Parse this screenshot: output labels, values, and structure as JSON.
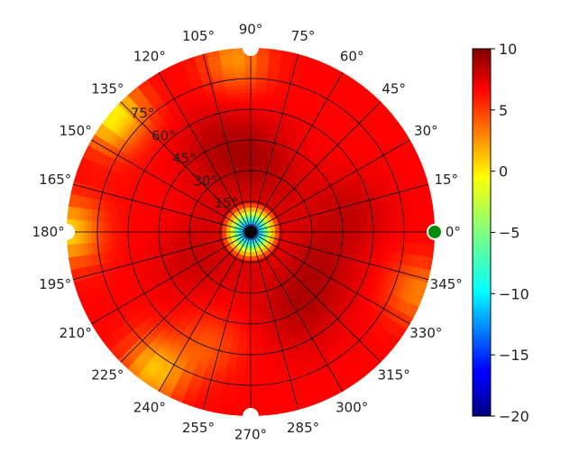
{
  "chart_data": {
    "type": "heatmap",
    "projection": "polar",
    "title": "",
    "angle_ticks": [
      {
        "deg": 0,
        "label": "0°"
      },
      {
        "deg": 15,
        "label": "15°"
      },
      {
        "deg": 30,
        "label": "30°"
      },
      {
        "deg": 45,
        "label": "45°"
      },
      {
        "deg": 60,
        "label": "60°"
      },
      {
        "deg": 75,
        "label": "75°"
      },
      {
        "deg": 90,
        "label": "90°"
      },
      {
        "deg": 105,
        "label": "105°"
      },
      {
        "deg": 120,
        "label": "120°"
      },
      {
        "deg": 135,
        "label": "135°"
      },
      {
        "deg": 150,
        "label": "150°"
      },
      {
        "deg": 165,
        "label": "165°"
      },
      {
        "deg": 180,
        "label": "180°"
      },
      {
        "deg": 195,
        "label": "195°"
      },
      {
        "deg": 210,
        "label": "210°"
      },
      {
        "deg": 225,
        "label": "225°"
      },
      {
        "deg": 240,
        "label": "240°"
      },
      {
        "deg": 255,
        "label": "255°"
      },
      {
        "deg": 270,
        "label": "270°"
      },
      {
        "deg": 285,
        "label": "285°"
      },
      {
        "deg": 300,
        "label": "300°"
      },
      {
        "deg": 315,
        "label": "315°"
      },
      {
        "deg": 330,
        "label": "330°"
      },
      {
        "deg": 345,
        "label": "345°"
      }
    ],
    "radial_ticks": [
      {
        "value": 15,
        "label": "15°"
      },
      {
        "value": 30,
        "label": "30°"
      },
      {
        "value": 45,
        "label": "45°"
      },
      {
        "value": 60,
        "label": "60°"
      },
      {
        "value": 75,
        "label": "75°"
      }
    ],
    "radial_range": [
      0,
      90
    ],
    "colorbar": {
      "colormap": "jet",
      "range": [
        -20,
        10
      ],
      "ticks": [
        {
          "value": 10,
          "label": "10"
        },
        {
          "value": 5,
          "label": "5"
        },
        {
          "value": 0,
          "label": "0"
        },
        {
          "value": -5,
          "label": "−5"
        },
        {
          "value": -10,
          "label": "−10"
        },
        {
          "value": -15,
          "label": "−15"
        },
        {
          "value": -20,
          "label": "−20"
        }
      ]
    },
    "field": {
      "description_values": "value as function of polar angle (deg) and radial angle (deg)",
      "center_value": -20,
      "base_value": 6.2,
      "high_regions": [
        {
          "theta": 110,
          "r": 45,
          "value": 8.2
        },
        {
          "theta": 80,
          "r": 35,
          "value": 7.8
        },
        {
          "theta": 10,
          "r": 48,
          "value": 8.0
        },
        {
          "theta": 205,
          "r": 30,
          "value": 7.8
        },
        {
          "theta": 300,
          "r": 45,
          "value": 8.0
        },
        {
          "theta": 330,
          "r": 40,
          "value": 7.6
        }
      ],
      "low_regions": [
        {
          "theta": 140,
          "r": 88,
          "value": -1.0
        },
        {
          "theta": 235,
          "r": 82,
          "value": 0.5
        },
        {
          "theta": 180,
          "r": 90,
          "value": 0.0
        },
        {
          "theta": 95,
          "r": 85,
          "value": 2.0
        },
        {
          "theta": 250,
          "r": 60,
          "value": 4.0
        },
        {
          "theta": 340,
          "r": 88,
          "value": 2.5
        }
      ]
    },
    "markers": [
      {
        "theta": 0,
        "r": 90,
        "color": "#0a8a0a",
        "edge": "#ffffff"
      },
      {
        "theta": 90,
        "r": 90,
        "color": "#ffffff",
        "edge": "#ffffff"
      },
      {
        "theta": 180,
        "r": 90,
        "color": "#ffffff",
        "edge": "#ffffff"
      },
      {
        "theta": 270,
        "r": 90,
        "color": "#ffffff",
        "edge": "#ffffff"
      },
      {
        "theta": 0,
        "r": 0,
        "color": "#000000",
        "edge": "#000000"
      }
    ]
  }
}
